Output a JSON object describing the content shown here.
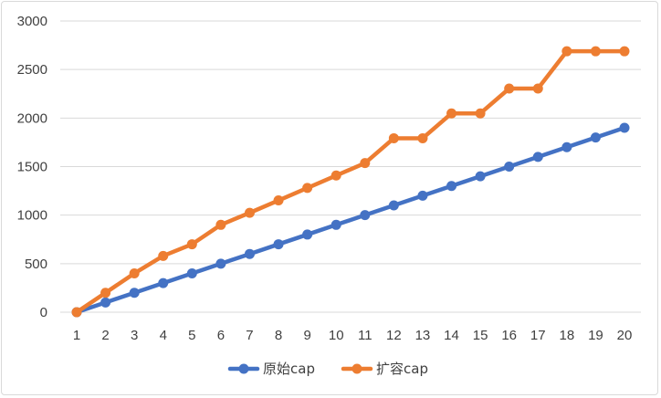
{
  "chart_data": {
    "type": "line",
    "title": "",
    "xlabel": "",
    "ylabel": "",
    "categories": [
      "1",
      "2",
      "3",
      "4",
      "5",
      "6",
      "7",
      "8",
      "9",
      "10",
      "11",
      "12",
      "13",
      "14",
      "15",
      "16",
      "17",
      "18",
      "19",
      "20"
    ],
    "ylim": [
      0,
      3000
    ],
    "yticks": [
      "0",
      "500",
      "1000",
      "1500",
      "2000",
      "2500",
      "3000"
    ],
    "grid": true,
    "legend_position": "bottom",
    "series": [
      {
        "name": "原始cap",
        "color": "#4472C4",
        "values": [
          0,
          100,
          200,
          300,
          400,
          500,
          600,
          700,
          800,
          900,
          1000,
          1100,
          1200,
          1300,
          1400,
          1500,
          1600,
          1700,
          1800,
          1900
        ]
      },
      {
        "name": "扩容cap",
        "color": "#ED7D31",
        "values": [
          0,
          200,
          400,
          580,
          700,
          900,
          1024,
          1152,
          1280,
          1408,
          1536,
          1792,
          1792,
          2048,
          2048,
          2304,
          2304,
          2688,
          2688,
          2688
        ]
      }
    ]
  }
}
